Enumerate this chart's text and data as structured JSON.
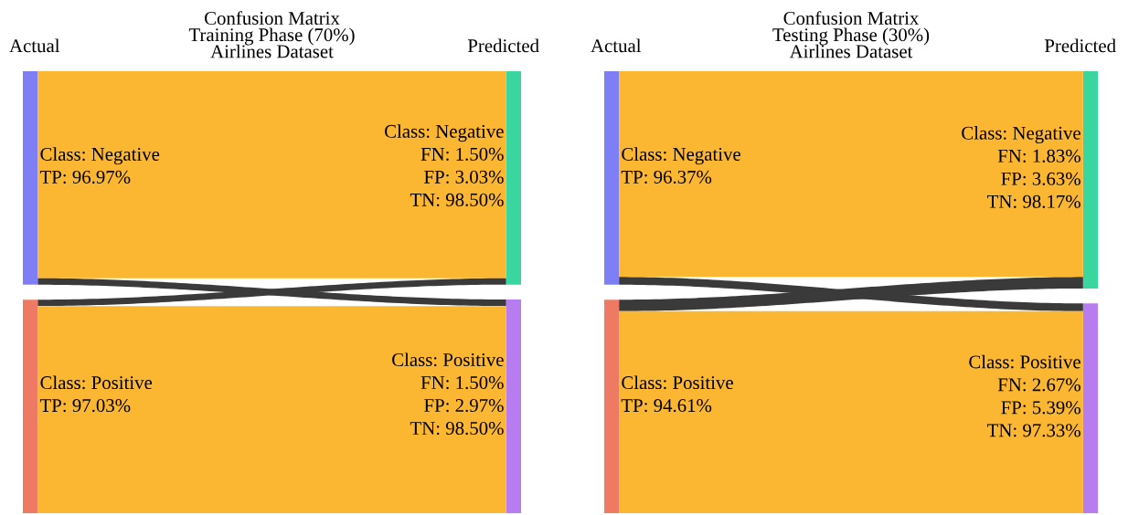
{
  "chart_data": [
    {
      "type": "other",
      "title": "Confusion Matrix\nTraining Phase (70%)\nAirlines Dataset",
      "annotations": [
        "Actual",
        "Predicted",
        "FN: 1.50%",
        "TN: 98.50%",
        "FN: 1.50%",
        "TN: 98.50%"
      ],
      "categories": [
        "Class: Negative",
        "Class: Positive"
      ],
      "y2_categories": [
        "Class: Negative",
        "Class: Positive"
      ],
      "colors": [
        "#7f7ff5",
        "#ef7a63",
        "#3ad6a0",
        "#b77cf0"
      ],
      "series": [
        {
          "color": "#fbb731",
          "values": [
            96.97,
            97.03
          ],
          "value_labels": [
            "TP: 96.97%",
            "TP: 97.03%"
          ]
        },
        {
          "color": "#3a3a3a",
          "values": [
            3.03,
            2.97
          ],
          "value_labels": [
            "FP: 3.03%",
            "FP: 2.97%"
          ]
        }
      ]
    },
    {
      "type": "other",
      "title": "Confusion Matrix\nTesting Phase (30%)\nAirlines Dataset",
      "annotations": [
        "Actual",
        "Predicted",
        "FN: 1.83%",
        "TN: 98.17%",
        "FN: 2.67%",
        "TN: 97.33%"
      ],
      "categories": [
        "Class: Negative",
        "Class: Positive"
      ],
      "y2_categories": [
        "Class: Negative",
        "Class: Positive"
      ],
      "colors": [
        "#7f7ff5",
        "#ef7a63",
        "#3ad6a0",
        "#b77cf0"
      ],
      "series": [
        {
          "color": "#fbb731",
          "values": [
            96.37,
            94.61
          ],
          "value_labels": [
            "TP: 96.37%",
            "TP: 94.61%"
          ]
        },
        {
          "color": "#3a3a3a",
          "values": [
            3.63,
            5.39
          ],
          "value_labels": [
            "FP: 3.63%",
            "FP: 5.39%"
          ]
        }
      ]
    }
  ]
}
